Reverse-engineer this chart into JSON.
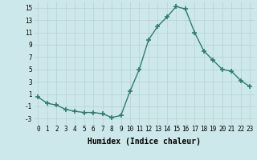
{
  "x": [
    0,
    1,
    2,
    3,
    4,
    5,
    6,
    7,
    8,
    9,
    10,
    11,
    12,
    13,
    14,
    15,
    16,
    17,
    18,
    19,
    20,
    21,
    22,
    23
  ],
  "y": [
    0.5,
    -0.5,
    -0.8,
    -1.5,
    -1.8,
    -2.0,
    -2.0,
    -2.2,
    -2.8,
    -2.5,
    1.5,
    5.0,
    9.8,
    12.0,
    13.5,
    15.2,
    14.8,
    11.0,
    8.0,
    6.5,
    5.0,
    4.7,
    3.2,
    2.2
  ],
  "line_color": "#2e7d6e",
  "marker": "+",
  "markersize": 4,
  "markeredgewidth": 1.2,
  "linewidth": 1.0,
  "xlabel": "Humidex (Indice chaleur)",
  "xlim": [
    -0.5,
    23.5
  ],
  "ylim": [
    -4,
    16
  ],
  "yticks": [
    -3,
    -1,
    1,
    3,
    5,
    7,
    9,
    11,
    13,
    15
  ],
  "xticks": [
    0,
    1,
    2,
    3,
    4,
    5,
    6,
    7,
    8,
    9,
    10,
    11,
    12,
    13,
    14,
    15,
    16,
    17,
    18,
    19,
    20,
    21,
    22,
    23
  ],
  "background_color": "#cde8ea",
  "grid_color": "#b8d0d2",
  "tick_fontsize": 5.5,
  "xlabel_fontsize": 7.0
}
